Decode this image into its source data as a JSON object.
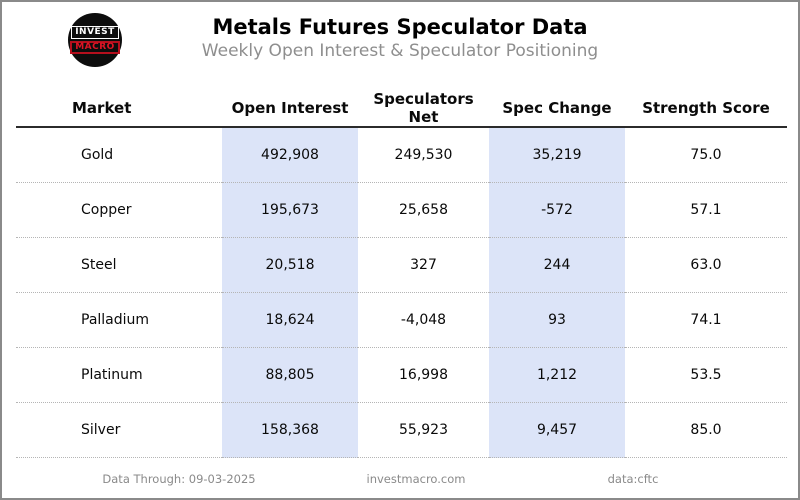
{
  "header": {
    "title": "Metals Futures Speculator Data",
    "subtitle": "Weekly Open Interest & Speculator Positioning",
    "logo": {
      "line1": "INVEST",
      "line2": "MACRO"
    }
  },
  "table": {
    "columns": [
      "Market",
      "Open Interest",
      "Speculators Net",
      "Spec Change",
      "Strength Score"
    ],
    "highlight_color": "#dce4f8",
    "rows": [
      {
        "market": "Gold",
        "open_interest": "492,908",
        "speculators_net": "249,530",
        "spec_change": "35,219",
        "strength_score": "75.0"
      },
      {
        "market": "Copper",
        "open_interest": "195,673",
        "speculators_net": "25,658",
        "spec_change": "-572",
        "strength_score": "57.1"
      },
      {
        "market": "Steel",
        "open_interest": "20,518",
        "speculators_net": "327",
        "spec_change": "244",
        "strength_score": "63.0"
      },
      {
        "market": "Palladium",
        "open_interest": "18,624",
        "speculators_net": "-4,048",
        "spec_change": "93",
        "strength_score": "74.1"
      },
      {
        "market": "Platinum",
        "open_interest": "88,805",
        "speculators_net": "16,998",
        "spec_change": "1,212",
        "strength_score": "53.5"
      },
      {
        "market": "Silver",
        "open_interest": "158,368",
        "speculators_net": "55,923",
        "spec_change": "9,457",
        "strength_score": "85.0"
      }
    ]
  },
  "chart_data": {
    "type": "table",
    "title": "Metals Futures Speculator Data",
    "subtitle": "Weekly Open Interest & Speculator Positioning",
    "columns": [
      "Market",
      "Open Interest",
      "Speculators Net",
      "Spec Change",
      "Strength Score"
    ],
    "rows": [
      [
        "Gold",
        492908,
        249530,
        35219,
        75.0
      ],
      [
        "Copper",
        195673,
        25658,
        -572,
        57.1
      ],
      [
        "Steel",
        20518,
        327,
        244,
        63.0
      ],
      [
        "Palladium",
        18624,
        -4048,
        93,
        74.1
      ],
      [
        "Platinum",
        88805,
        16998,
        1212,
        53.5
      ],
      [
        "Silver",
        158368,
        55923,
        9457,
        85.0
      ]
    ],
    "highlighted_columns": [
      "Open Interest",
      "Spec Change"
    ]
  },
  "footer": {
    "data_through": "Data Through: 09-03-2025",
    "website": "investmacro.com",
    "source": "data:cftc"
  }
}
